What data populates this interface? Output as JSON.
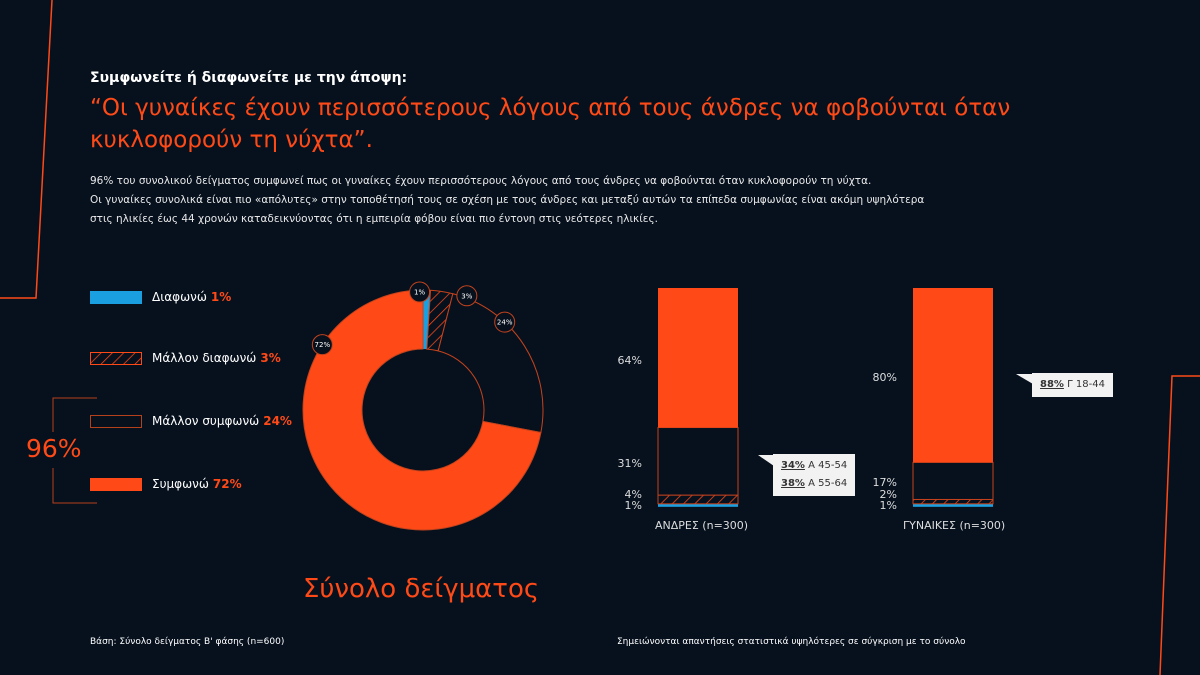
{
  "header": {
    "eyebrow": "Συμφωνείτε ή διαφωνείτε με την άποψη:",
    "title": "“Οι γυναίκες έχουν περισσότερους λόγους από τους άνδρες να φοβούνται όταν κυκλοφορούν τη νύχτα”.",
    "desc": [
      "96% του συνολικού δείγματος συμφωνεί πως οι γυναίκες έχουν περισσότερους λόγους από τους άνδρες να φοβούνται όταν κυκλοφορούν τη νύχτα.",
      "Οι γυναίκες συνολικά είναι πιο «απόλυτες» στην τοποθέτησή τους σε σχέση με τους άνδρες και μεταξύ αυτών τα επίπεδα συμφωνίας είναι ακόμη υψηλότερα",
      "στις ηλικίες έως 44 χρονών καταδεικνύοντας ότι η εμπειρία φόβου είναι πιο έντονη στις νεότερες ηλικίες."
    ]
  },
  "colors": {
    "orange": "#ff4a17",
    "blue": "#1a9fe0",
    "bg": "#07111e"
  },
  "legend": [
    {
      "label": "Διαφωνώ",
      "pct": "1%",
      "style": "solid-blue"
    },
    {
      "label": "Μάλλον διαφωνώ",
      "pct": "3%",
      "style": "hatched"
    },
    {
      "label": "Μάλλον συμφωνώ",
      "pct": "24%",
      "style": "outline"
    },
    {
      "label": "Συμφωνώ",
      "pct": "72%",
      "style": "solid-orange"
    }
  ],
  "total_agree": "96%",
  "sample_title": "Σύνολο δείγματος",
  "chart_data": [
    {
      "type": "pie",
      "variant": "donut",
      "categories": [
        "Διαφωνώ",
        "Μάλλον διαφωνώ",
        "Μάλλον συμφωνώ",
        "Συμφωνώ"
      ],
      "values": [
        1,
        3,
        24,
        72
      ],
      "labels": [
        "1%",
        "3%",
        "24%",
        "72%"
      ]
    },
    {
      "type": "bar",
      "stacked": true,
      "categories": [
        "ΑΝΔΡΕΣ (n=300)",
        "ΓΥΝΑΙΚΕΣ (n=300)"
      ],
      "series": [
        {
          "name": "Διαφωνώ",
          "values": [
            1,
            1
          ],
          "labels": [
            "1%",
            "1%"
          ]
        },
        {
          "name": "Μάλλον διαφωνώ",
          "values": [
            4,
            2
          ],
          "labels": [
            "4%",
            "2%"
          ]
        },
        {
          "name": "Μάλλον συμφωνώ",
          "values": [
            31,
            17
          ],
          "labels": [
            "31%",
            "17%"
          ]
        },
        {
          "name": "Συμφωνώ",
          "values": [
            64,
            80
          ],
          "labels": [
            "64%",
            "80%"
          ]
        }
      ],
      "callouts": [
        [
          {
            "value": "34%",
            "text": "Α 45-54"
          },
          {
            "value": "38%",
            "text": "Α 55-64"
          }
        ],
        [
          {
            "value": "88%",
            "text": "Γ 18-44"
          }
        ]
      ]
    }
  ],
  "footer": {
    "left": "Βάση: Σύνολο δείγματος Β' φάσης (n=600)",
    "right": "Σημειώνονται απαντήσεις στατιστικά υψηλότερες σε σύγκριση με το σύνολο"
  }
}
